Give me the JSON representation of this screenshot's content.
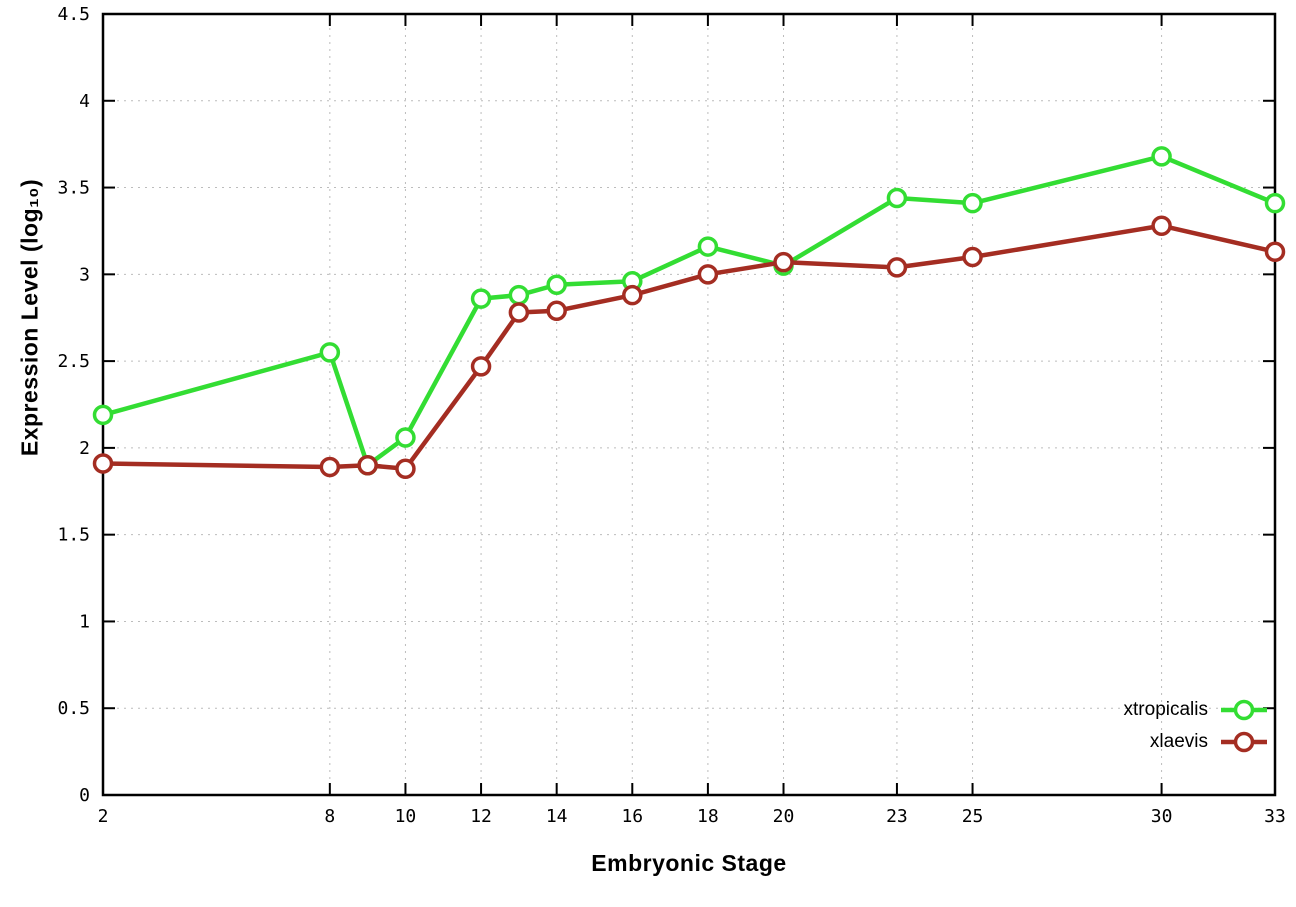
{
  "chart_data": {
    "type": "line",
    "title": "",
    "xlabel": "Embryonic Stage",
    "ylabel": "Expression Level (log₁₀)",
    "xlim": [
      2,
      33
    ],
    "ylim": [
      0,
      4.5
    ],
    "grid": true,
    "legend_position": "bottom-right",
    "x_ticks": [
      2,
      8,
      10,
      12,
      14,
      16,
      18,
      20,
      23,
      25,
      30,
      33
    ],
    "x_tick_labels": [
      "2",
      "8",
      "10",
      "12",
      "14",
      "16",
      "18",
      "20",
      "23",
      "25",
      "30",
      "33"
    ],
    "y_ticks": [
      0,
      0.5,
      1,
      1.5,
      2,
      2.5,
      3,
      3.5,
      4,
      4.5
    ],
    "y_tick_labels": [
      "0",
      "0.5",
      "1",
      "1.5",
      "2",
      "2.5",
      "3",
      "3.5",
      "4",
      "4.5"
    ],
    "x": [
      2,
      8,
      9,
      10,
      12,
      13,
      14,
      16,
      18,
      20,
      23,
      25,
      30,
      33
    ],
    "series": [
      {
        "name": "xtropicalis",
        "color": "#33dd33",
        "values": [
          2.19,
          2.55,
          1.9,
          2.06,
          2.86,
          2.88,
          2.94,
          2.96,
          3.16,
          3.05,
          3.44,
          3.41,
          3.68,
          3.41
        ]
      },
      {
        "name": "xlaevis",
        "color": "#a42d22",
        "values": [
          1.91,
          1.89,
          1.9,
          1.88,
          2.47,
          2.78,
          2.79,
          2.88,
          3.0,
          3.07,
          3.04,
          3.1,
          3.28,
          3.13
        ]
      }
    ]
  }
}
